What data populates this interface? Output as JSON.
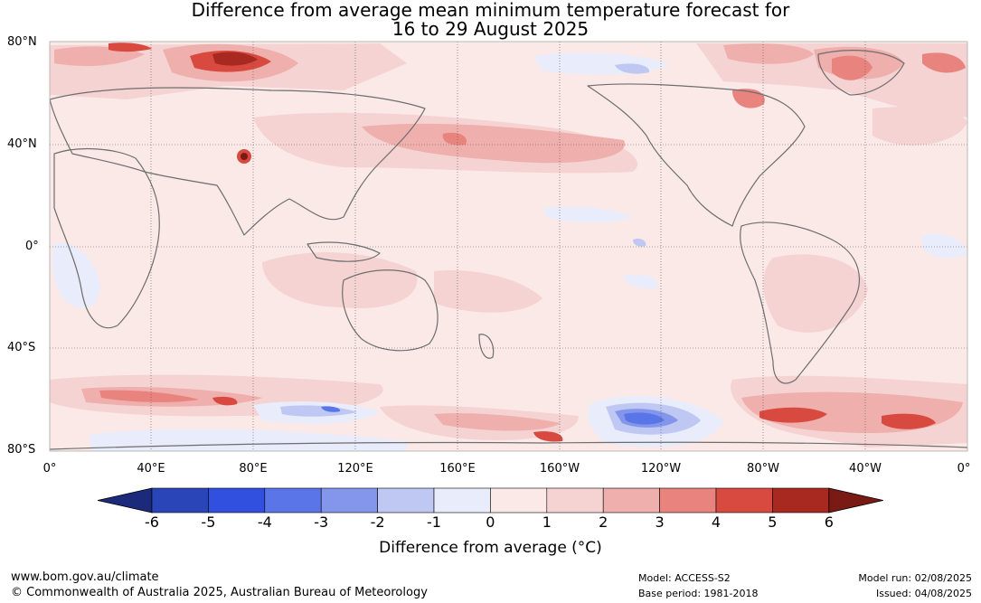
{
  "title": {
    "line1": "Difference from average mean minimum temperature forecast for",
    "line2": "16 to 29 August 2025"
  },
  "map": {
    "lat_labels": [
      "80°N",
      "40°N",
      "0°",
      "40°S",
      "80°S"
    ],
    "lon_labels": [
      "0°",
      "40°E",
      "80°E",
      "120°E",
      "160°E",
      "160°W",
      "120°W",
      "80°W",
      "40°W",
      "0°"
    ]
  },
  "colorbar": {
    "title": "Difference from average (°C)",
    "ticks": [
      "-6",
      "-5",
      "-4",
      "-3",
      "-2",
      "-1",
      "0",
      "1",
      "2",
      "3",
      "4",
      "5",
      "6"
    ],
    "colors": [
      "#1b2a7a",
      "#2a45b8",
      "#3150e0",
      "#5a75e8",
      "#8496ec",
      "#bfc8f2",
      "#e8ecfb",
      "#fbe9e8",
      "#f5d3d2",
      "#eeafad",
      "#e8837e",
      "#d84a40",
      "#a8291f",
      "#7a1a14"
    ]
  },
  "footer": {
    "url": "www.bom.gov.au/climate",
    "copyright": "© Commonwealth of Australia 2025, Australian Bureau of Meteorology",
    "model": "Model: ACCESS-S2",
    "base_period": "Base period: 1981-2018",
    "model_run": "Model run: 02/08/2025",
    "issued": "Issued: 04/08/2025"
  }
}
